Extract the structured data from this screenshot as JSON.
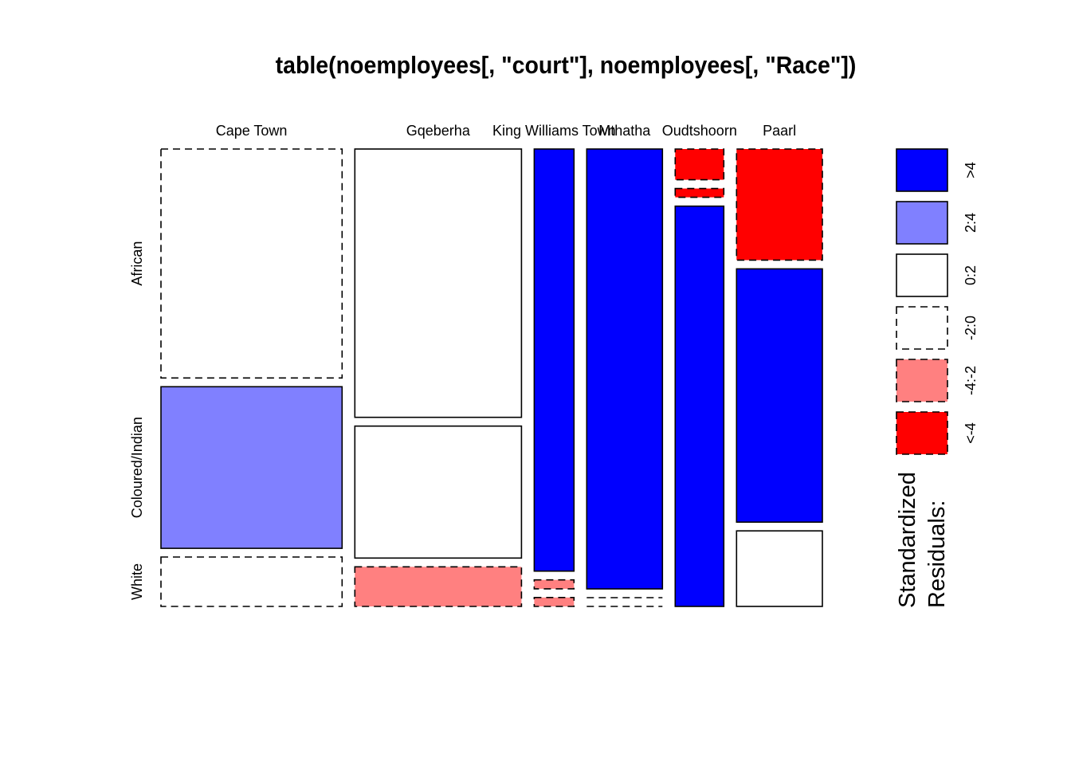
{
  "chart_data": {
    "type": "mosaic",
    "title": "table(noemployees[, \"court\"], noemployees[, \"Race\"])",
    "columns": [
      "Cape Town",
      "Gqeberha",
      "King Williams Town",
      "Mthatha",
      "Oudtshoorn",
      "Paarl"
    ],
    "rows": [
      "African",
      "Coloured/Indian",
      "White"
    ],
    "column_proportions": [
      0.287,
      0.264,
      0.063,
      0.12,
      0.077,
      0.136
    ],
    "cell_proportions": [
      [
        0.51,
        0.36,
        0.11
      ],
      [
        0.61,
        0.3,
        0.09
      ],
      [
        0.95,
        0.02,
        0.02
      ],
      [
        0.93,
        0.0,
        0.0
      ],
      [
        0.07,
        0.02,
        0.91
      ],
      [
        0.25,
        0.57,
        0.17
      ]
    ],
    "residual_class": [
      [
        "-2:0",
        "2:4",
        "-2:0"
      ],
      [
        "0:2",
        "0:2",
        "-4:-2"
      ],
      [
        ">4",
        "-4:-2",
        "-4:-2"
      ],
      [
        ">4",
        "-2:0",
        "-2:0"
      ],
      [
        "<-4",
        "<-4",
        ">4"
      ],
      [
        "<-4",
        ">4",
        "0:2"
      ]
    ],
    "legend": {
      "title_lines": [
        "Standardized",
        "Residuals:"
      ],
      "items": [
        {
          "label": ">4",
          "fill": "#0000ff",
          "dashed": false
        },
        {
          "label": "2:4",
          "fill": "#8080ff",
          "dashed": false
        },
        {
          "label": "0:2",
          "fill": "#ffffff",
          "dashed": false
        },
        {
          "label": "-2:0",
          "fill": "#ffffff",
          "dashed": true
        },
        {
          "label": "-4:-2",
          "fill": "#ff8080",
          "dashed": true
        },
        {
          "label": "<-4",
          "fill": "#ff0000",
          "dashed": true
        }
      ]
    }
  }
}
